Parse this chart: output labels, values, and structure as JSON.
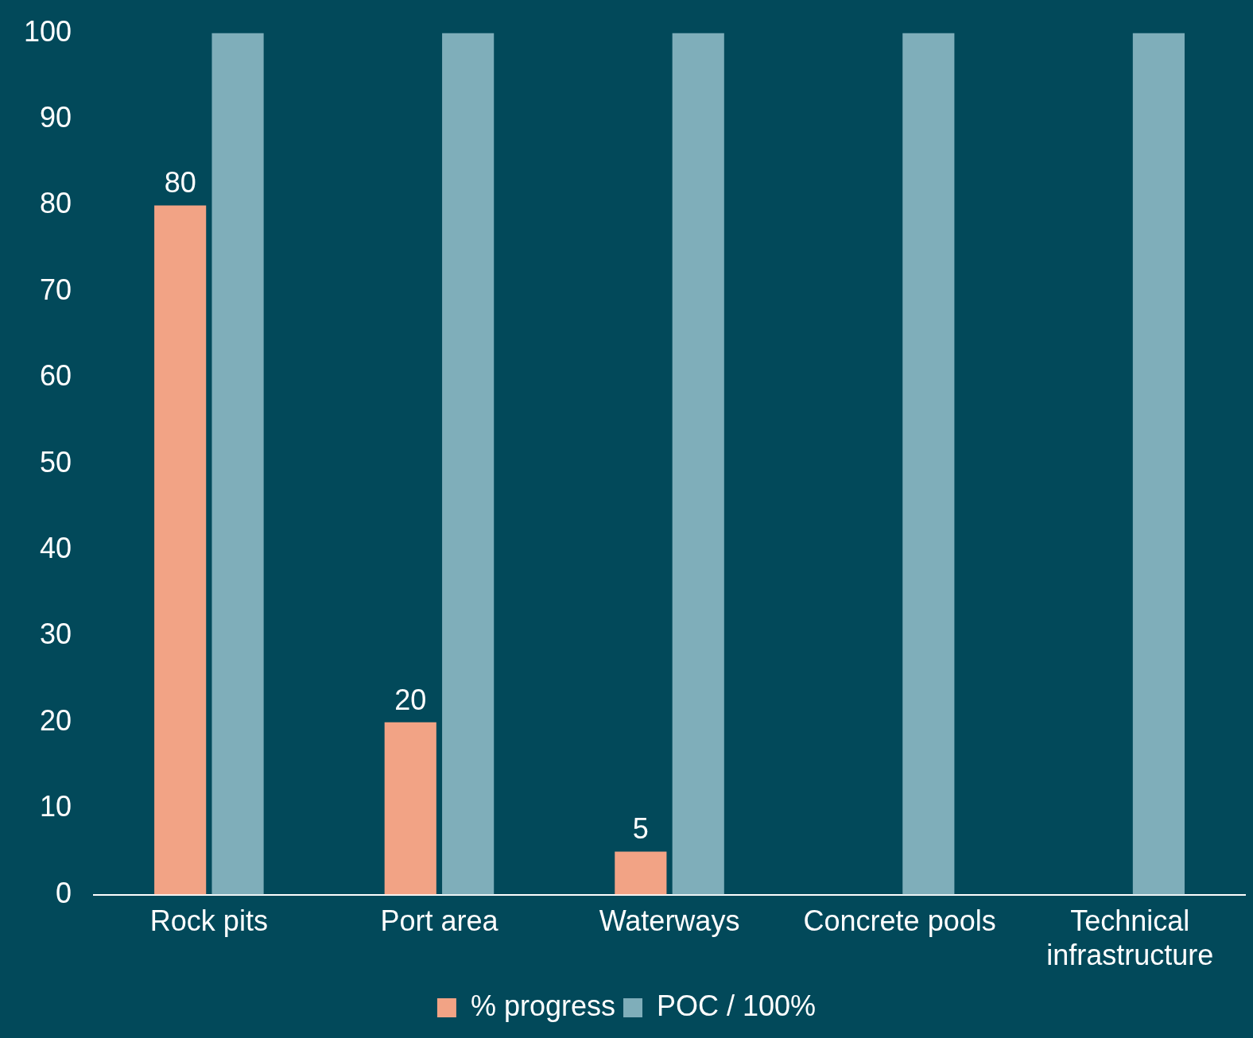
{
  "chart_data": {
    "type": "bar",
    "categories": [
      "Rock pits",
      "Port area",
      "Waterways",
      "Concrete pools",
      "Technical infrastructure"
    ],
    "series": [
      {
        "name": "% progress",
        "color": "#f2a385",
        "values": [
          80,
          20,
          5,
          null,
          null
        ],
        "value_labels": [
          "80",
          "20",
          "5",
          null,
          null
        ]
      },
      {
        "name": "POC / 100%",
        "color": "#7faeba",
        "values": [
          100,
          100,
          100,
          100,
          100
        ]
      }
    ],
    "ylim": [
      0,
      100
    ],
    "yticks": [
      0,
      10,
      20,
      30,
      40,
      50,
      60,
      70,
      80,
      90,
      100
    ],
    "grid": false,
    "legend": "bottom"
  }
}
